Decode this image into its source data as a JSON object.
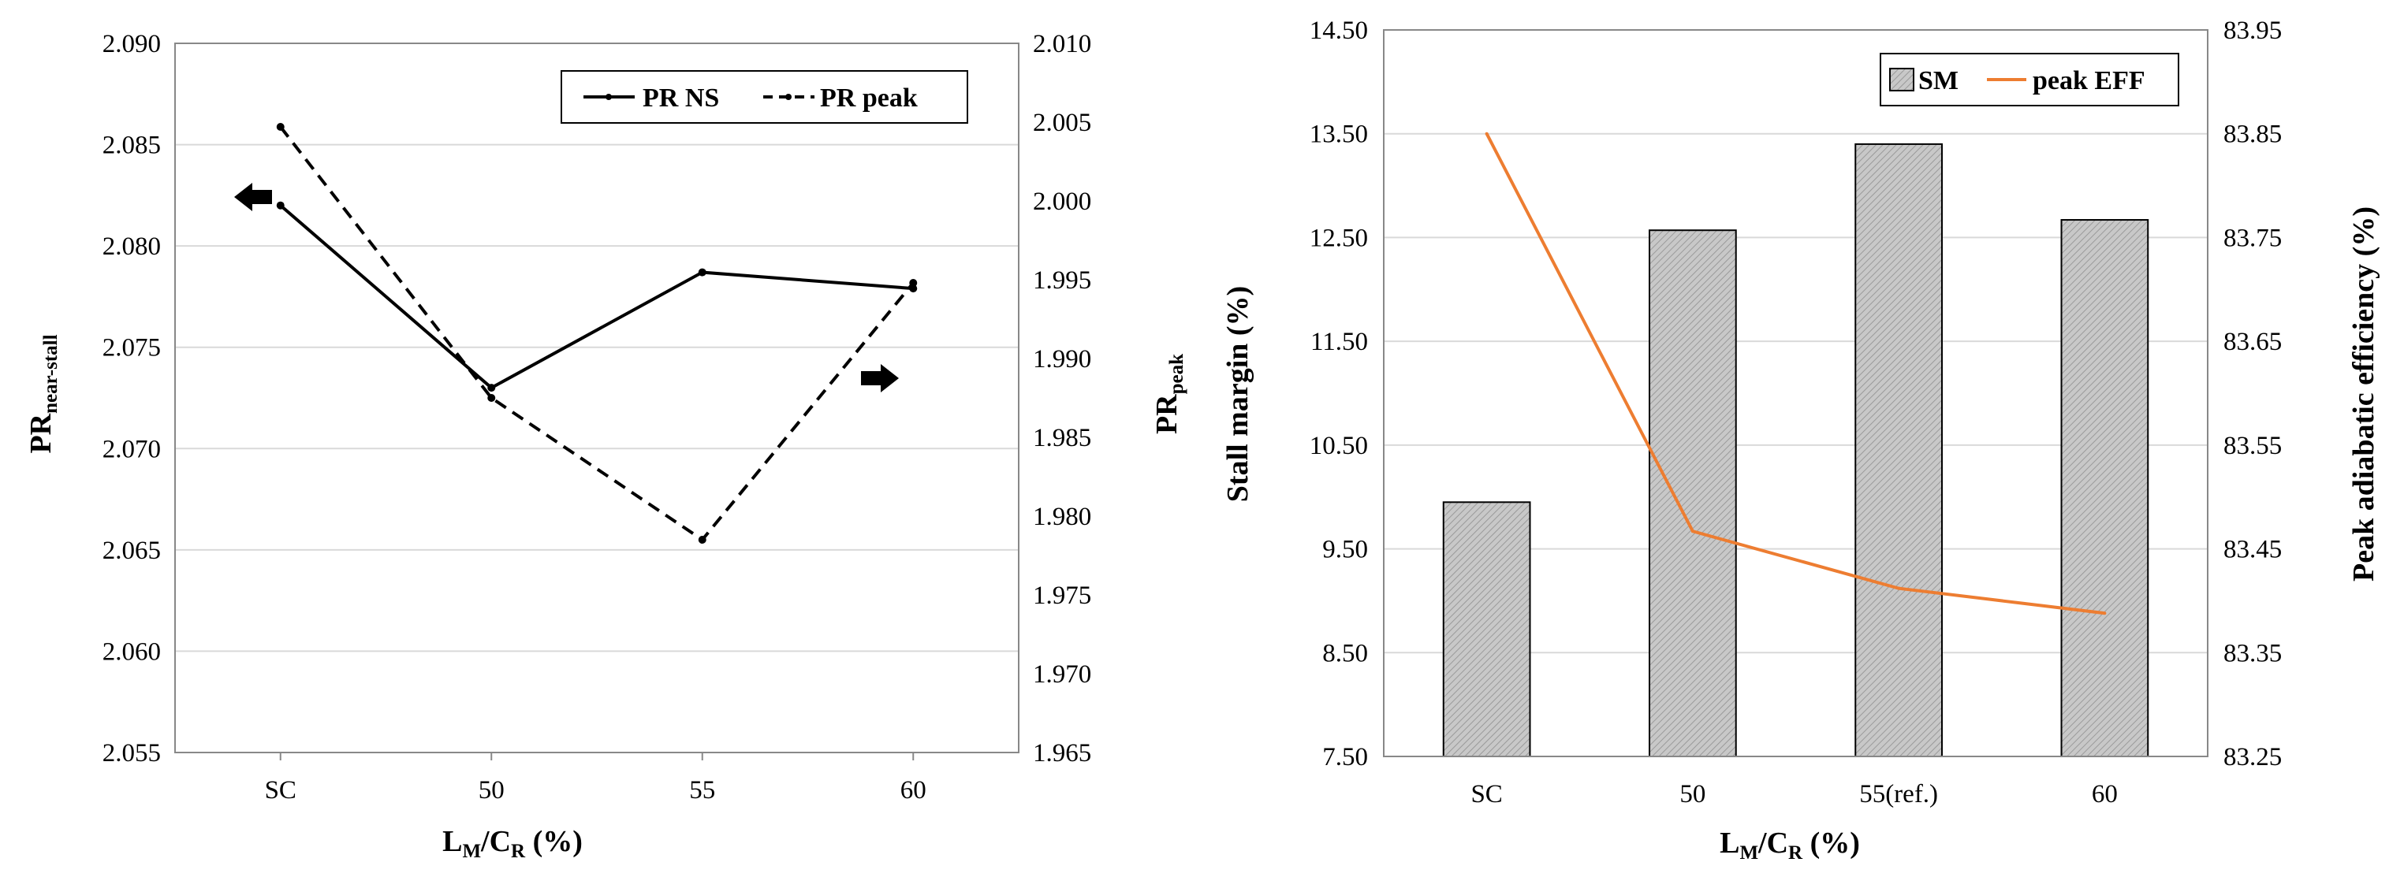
{
  "chart_data": [
    {
      "type": "line",
      "title": "",
      "categories": [
        "SC",
        "50",
        "55",
        "60"
      ],
      "xlabel": {
        "main": "L",
        "sub1": "M",
        "mid": "/C",
        "sub2": "R",
        "tail": " (%)"
      },
      "ylabel_left": {
        "main": "PR",
        "sub": "near-stall"
      },
      "ylabel_right": {
        "main": "PR",
        "sub": "peak"
      },
      "ylim_left": [
        2.055,
        2.09
      ],
      "ylim_right": [
        1.965,
        2.01
      ],
      "yticks_left": [
        "2.055",
        "2.060",
        "2.065",
        "2.070",
        "2.075",
        "2.080",
        "2.085",
        "2.090"
      ],
      "yticks_right": [
        "1.965",
        "1.970",
        "1.975",
        "1.980",
        "1.985",
        "1.990",
        "1.995",
        "2.000",
        "2.005",
        "2.010"
      ],
      "series": [
        {
          "name": "PR NS",
          "axis": "left",
          "style": "solid",
          "values": [
            2.082,
            2.073,
            2.0787,
            2.0779
          ]
        },
        {
          "name": "PR peak",
          "axis": "right",
          "style": "dashed",
          "values": [
            2.0047,
            1.9875,
            1.9785,
            1.9948
          ]
        }
      ],
      "legend": "top-right",
      "annotations": [
        "left-arrow at PR NS (SC)",
        "right-arrow near PR peak (60)"
      ]
    },
    {
      "type": "bar",
      "title": "",
      "categories": [
        "SC",
        "50",
        "55(ref.)",
        "60"
      ],
      "xlabel": {
        "main": "L",
        "sub1": "M",
        "mid": "/C",
        "sub2": "R",
        "tail": " (%)"
      },
      "ylabel_left": "Stall margin (%)",
      "ylabel_right": "Peak adiabatic efficiency (%)",
      "ylim_left": [
        7.5,
        14.5
      ],
      "ylim_right": [
        83.25,
        83.95
      ],
      "yticks_left": [
        "7.50",
        "8.50",
        "9.50",
        "10.50",
        "11.50",
        "12.50",
        "13.50",
        "14.50"
      ],
      "yticks_right": [
        "83.25",
        "83.35",
        "83.45",
        "83.55",
        "83.65",
        "83.75",
        "83.85",
        "83.95"
      ],
      "series": [
        {
          "name": "SM",
          "axis": "left",
          "kind": "bar",
          "values": [
            9.95,
            12.57,
            13.4,
            12.67
          ]
        },
        {
          "name": "peak EFF",
          "axis": "right",
          "kind": "line",
          "color": "#ed7d31",
          "values": [
            83.85,
            83.467,
            83.412,
            83.388
          ]
        }
      ],
      "legend": "top-right"
    }
  ]
}
